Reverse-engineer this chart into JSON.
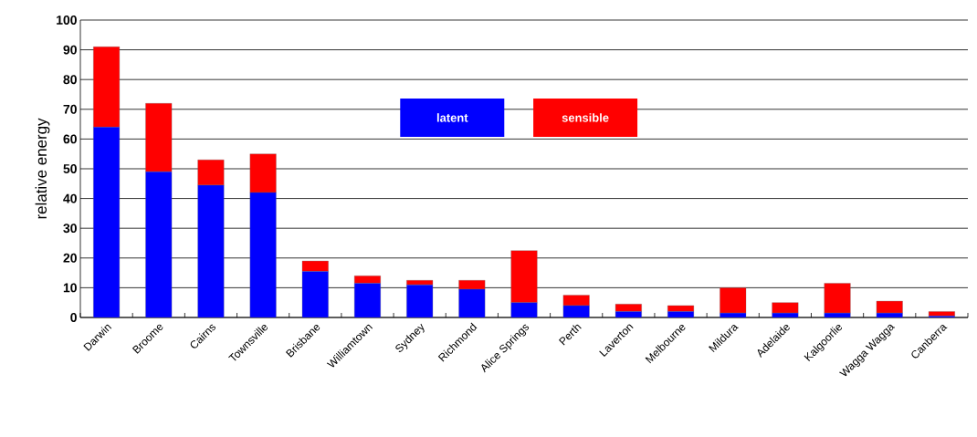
{
  "chart_data": {
    "type": "bar",
    "stacked": true,
    "ylabel": "relative energy",
    "categories": [
      "Darwin",
      "Broome",
      "Cairns",
      "Townsville",
      "Brisbane",
      "Williamtown",
      "Sydney",
      "Richmond",
      "Alice Springs",
      "Perth",
      "Laverton",
      "Melbourne",
      "Mildura",
      "Adelaide",
      "Kalgoorlie",
      "Wagga Wagga",
      "Canberra"
    ],
    "series": [
      {
        "name": "latent",
        "color": "#0000ff",
        "values": [
          64,
          49,
          44.5,
          42,
          15.5,
          11.5,
          11,
          9.5,
          5,
          4,
          2,
          2,
          1.5,
          1.5,
          1.5,
          1.5,
          0.5
        ]
      },
      {
        "name": "sensible",
        "color": "#ff0000",
        "values": [
          27,
          23,
          8.5,
          13,
          3.5,
          2.5,
          1.5,
          3,
          17.5,
          3.5,
          2.5,
          2,
          8.5,
          3.5,
          10,
          4,
          1.5
        ]
      }
    ],
    "ylim": [
      0,
      100
    ],
    "yticks": [
      0,
      10,
      20,
      30,
      40,
      50,
      60,
      70,
      80,
      90,
      100
    ],
    "grid": "y",
    "legend": "top"
  }
}
